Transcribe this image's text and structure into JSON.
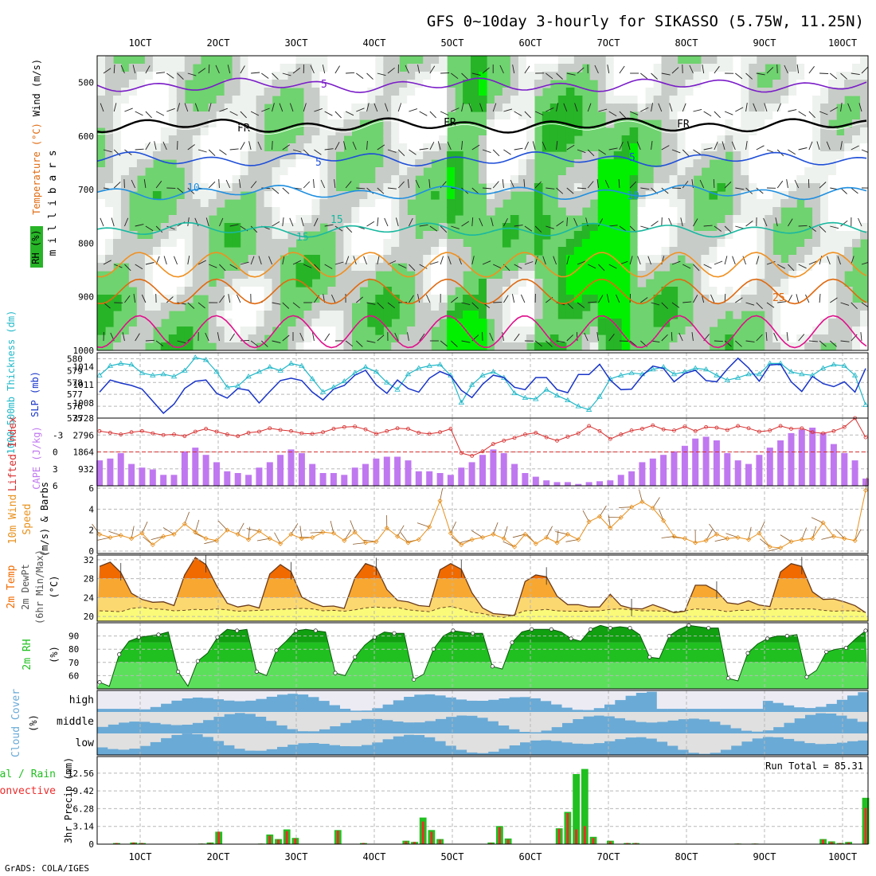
{
  "title": "GFS 0~10day 3-hourly for SIKASSO (5.75W, 11.25N)",
  "credit": "GrADS: COLA/IGES",
  "colors": {
    "rh_dark": "#27b427",
    "rh_mid": "#6fd36f",
    "rh_bright": "#00f000",
    "rh_gray": "#c8ccc8",
    "rh_light": "#eef2ee",
    "rh_white": "#ffffff",
    "temp_purple": "#7a1cc8",
    "temp_fr": "#000000",
    "temp_blue": "#1f4fd8",
    "temp_sky": "#1f8fe0",
    "temp_teal": "#19b8a0",
    "temp_orange": "#f09020",
    "temp_dkorange": "#e06a10",
    "temp_magenta": "#e0108c",
    "thickness": "#20b8c8",
    "slp": "#1834c8",
    "lifted": "#d83030",
    "cape": "#c078f0",
    "wind10": "#e8901c",
    "barb10": "#8a5a2a",
    "temp2m_hot": "#f06a00",
    "temp2m_warm": "#f8a830",
    "temp2m_mild": "#fcd870",
    "dew_fill": "#fafa78",
    "rh2m_dark": "#10a010",
    "rh2m_mid": "#20c020",
    "rh2m_light": "#5ce05c",
    "cloud_blue": "#6aaad6",
    "cloud_gray": "#e0e0e0",
    "cloud_pale": "#ecebf4",
    "rain_total": "#20c020",
    "rain_conv": "#ee2a2a"
  },
  "chart_data": [
    {
      "type": "heatmap",
      "name": "upper",
      "ylabel": "m i l l i b a r s",
      "legend_labels": [
        "Wind (m/s)",
        "Temperature (°C)",
        "RH (%)"
      ],
      "y_ticks": [
        "500",
        "600",
        "700",
        "800",
        "900",
        "1000"
      ],
      "ylim": [
        450,
        1000
      ],
      "x_ticks_top": [
        "1OCT",
        "2OCT",
        "3OCT",
        "4OCT",
        "5OCT",
        "6OCT",
        "7OCT",
        "8OCT",
        "9OCT",
        "10OCT"
      ],
      "contour_labels": [
        "5",
        "FR",
        "FR",
        "FR",
        "5",
        "5",
        "10",
        "10",
        "15",
        "15",
        "25"
      ],
      "isotherms": [
        {
          "name": "-5",
          "pressure": 505
        },
        {
          "name": "0",
          "pressure": 580
        },
        {
          "name": "5",
          "pressure": 643
        },
        {
          "name": "10",
          "pressure": 705
        },
        {
          "name": "15",
          "pressure": 775
        },
        {
          "name": "20",
          "pressure": 840
        },
        {
          "name": "25",
          "pressure": 890
        },
        {
          "name": "30",
          "pressure": 965
        }
      ],
      "wind_speed_max": 12
    },
    {
      "type": "line",
      "name": "thickness_slp",
      "ylabel_left": "1000-500mb Thickness (dm)",
      "ylabel_right": "SLP (mb)",
      "y_left_ticks": [
        "580",
        "579",
        "578",
        "577",
        "576",
        "575"
      ],
      "y_right_ticks": [
        "1014",
        "1011",
        "1008"
      ],
      "ylim_left": [
        575,
        580.5
      ],
      "ylim_right": [
        1005.5,
        1016.3
      ],
      "series": [
        {
          "name": "thickness",
          "values": [
            578.6,
            579.4,
            579.6,
            579.5,
            578.8,
            578.6,
            578.7,
            578.5,
            579.0,
            580.1,
            579.9,
            578.9,
            577.6,
            577.7,
            578.5,
            578.9,
            579.3,
            579.0,
            579.6,
            579.4,
            578.3,
            577.2,
            577.6,
            578.1,
            578.8,
            579.3,
            578.9,
            578.0,
            577.4,
            578.7,
            579.2,
            579.4,
            579.5,
            578.6,
            576.3,
            577.8,
            578.6,
            578.9,
            578.4,
            577.1,
            576.7,
            576.6,
            577.4,
            576.9,
            576.5,
            576.0,
            575.7,
            576.8,
            578.3,
            578.6,
            578.8,
            578.7,
            579.1,
            579.3,
            578.7,
            578.9,
            579.2,
            579.1,
            578.6,
            578.2,
            578.4,
            578.7,
            578.7,
            579.6,
            579.6,
            578.9,
            578.7,
            578.6,
            579.2,
            579.5,
            579.4,
            578.6,
            576.1
          ]
        },
        {
          "name": "slp",
          "values": [
            1009.8,
            1011.8,
            1011.3,
            1010.9,
            1010.3,
            1008.3,
            1006.3,
            1007.8,
            1010.4,
            1011.6,
            1011.8,
            1009.6,
            1008.8,
            1010.4,
            1010.1,
            1008.0,
            1009.9,
            1011.7,
            1012.1,
            1011.7,
            1009.8,
            1008.5,
            1010.3,
            1010.9,
            1012.6,
            1013.4,
            1011.0,
            1009.6,
            1011.8,
            1010.4,
            1009.8,
            1012.1,
            1013.2,
            1012.5,
            1010.1,
            1008.9,
            1011.1,
            1012.6,
            1012.2,
            1010.6,
            1010.2,
            1012.2,
            1012.2,
            1010.2,
            1009.7,
            1012.7,
            1012.7,
            1014.4,
            1011.8,
            1010.2,
            1010.3,
            1012.5,
            1014.1,
            1013.7,
            1011.5,
            1012.9,
            1013.4,
            1011.7,
            1011.5,
            1013.6,
            1015.4,
            1013.8,
            1011.6,
            1014.3,
            1014.4,
            1011.5,
            1009.9,
            1012.4,
            1011.2,
            1010.7,
            1011.5,
            1009.8,
            1013.7
          ]
        }
      ]
    },
    {
      "type": "bar",
      "name": "lifted_cape",
      "ylabel_left": "Lifted Index",
      "ylabel_right": "CAPE (J/kg)",
      "y_left_ticks": [
        "-3",
        "0",
        "3",
        "6"
      ],
      "y_right_ticks": [
        "3728",
        "2796",
        "1864",
        "932"
      ],
      "ylim_left": [
        -6,
        6
      ],
      "ylim_right": [
        0,
        3728
      ],
      "series": [
        {
          "name": "lifted_index",
          "values": [
            -3.7,
            -3.4,
            -3.1,
            -3.5,
            -3.7,
            -3.3,
            -3.0,
            -3.1,
            -2.8,
            -3.6,
            -4.1,
            -3.6,
            -3.1,
            -2.8,
            -3.4,
            -3.6,
            -4.2,
            -3.9,
            -3.7,
            -3.3,
            -3.2,
            -3.5,
            -4.1,
            -4.4,
            -4.5,
            -4.0,
            -3.2,
            -3.7,
            -4.2,
            -4.1,
            -3.4,
            -3.2,
            -3.5,
            -4.1,
            0.2,
            0.7,
            -0.1,
            -1.4,
            -2.0,
            -2.5,
            -3.1,
            -3.4,
            -2.6,
            -2.0,
            -2.7,
            -3.3,
            -4.6,
            -3.7,
            -2.3,
            -3.1,
            -3.8,
            -4.1,
            -4.7,
            -4.0,
            -3.8,
            -4.5,
            -3.7,
            -4.4,
            -4.3,
            -3.9,
            -4.6,
            -4.2,
            -3.6,
            -3.8,
            -4.6,
            -4.1,
            -4.2,
            -3.5,
            -3.3,
            -3.7,
            -4.4,
            -6.0,
            -2.6
          ]
        },
        {
          "name": "cape",
          "values": [
            1400,
            1500,
            1800,
            1200,
            1000,
            900,
            600,
            600,
            1900,
            2100,
            1700,
            1300,
            800,
            700,
            600,
            1000,
            1300,
            1700,
            2000,
            1800,
            1200,
            700,
            700,
            600,
            1000,
            1200,
            1500,
            1600,
            1600,
            1400,
            800,
            800,
            700,
            600,
            1000,
            1300,
            1700,
            2000,
            1800,
            1200,
            700,
            500,
            300,
            200,
            200,
            100,
            200,
            250,
            300,
            600,
            800,
            1300,
            1500,
            1700,
            1900,
            2200,
            2600,
            2700,
            2500,
            1800,
            1400,
            1200,
            1700,
            2100,
            2500,
            2900,
            3100,
            3200,
            2900,
            2300,
            1800,
            1400,
            400
          ]
        }
      ]
    },
    {
      "type": "line",
      "name": "wind10m",
      "ylabel": "10m Wind Speed (m/s) & Barbs",
      "y_ticks": [
        "6",
        "4",
        "2",
        "0"
      ],
      "ylim": [
        0,
        6
      ],
      "series": [
        {
          "name": "speed",
          "values": [
            1.6,
            1.3,
            1.5,
            1.2,
            1.7,
            0.6,
            1.4,
            1.6,
            2.6,
            1.8,
            1.2,
            1.0,
            2.0,
            1.6,
            1.1,
            1.9,
            1.2,
            0.7,
            1.6,
            1.2,
            1.3,
            1.8,
            1.7,
            1.0,
            1.8,
            0.8,
            0.9,
            2.2,
            1.4,
            0.8,
            1.1,
            2.3,
            4.8,
            1.7,
            0.6,
            1.1,
            1.3,
            1.6,
            1.2,
            0.4,
            1.6,
            0.7,
            1.3,
            0.8,
            1.6,
            1.1,
            2.8,
            3.3,
            2.2,
            3.2,
            4.2,
            4.7,
            4.1,
            2.9,
            1.4,
            1.2,
            0.8,
            1.0,
            1.6,
            1.2,
            1.3,
            1.1,
            1.7,
            0.4,
            0.3,
            0.9,
            1.1,
            1.2,
            2.7,
            1.4,
            1.2,
            1.0,
            5.8
          ]
        }
      ]
    },
    {
      "type": "area",
      "name": "temp2m",
      "ylabel": "2m Temp 2m DewPt (6hr Min/Max) (°C)",
      "y_ticks": [
        "32",
        "28",
        "24",
        "20"
      ],
      "ylim": [
        19,
        33
      ],
      "series": [
        {
          "name": "temp",
          "values": [
            30.6,
            31.5,
            29.3,
            24.9,
            23.6,
            23.0,
            23.1,
            22.3,
            28.8,
            32.5,
            31.0,
            26.5,
            22.8,
            22.0,
            22.4,
            21.8,
            29.0,
            31.0,
            29.5,
            24.1,
            22.9,
            22.1,
            22.2,
            21.7,
            28.2,
            31.2,
            30.4,
            25.7,
            23.4,
            23.1,
            22.3,
            22.1,
            29.9,
            31.2,
            30.0,
            25.0,
            21.8,
            20.6,
            20.4,
            20.2,
            27.4,
            28.8,
            28.4,
            24.3,
            22.5,
            22.5,
            22.0,
            22.0,
            24.7,
            22.3,
            21.7,
            21.6,
            22.5,
            21.7,
            20.8,
            21.1,
            26.6,
            26.6,
            25.4,
            22.9,
            22.6,
            23.3,
            22.4,
            22.1,
            29.4,
            31.2,
            30.6,
            25.2,
            23.6,
            23.7,
            23.1,
            22.3,
            20.8
          ]
        },
        {
          "name": "dewpt",
          "values": [
            21.2,
            21.1,
            21.0,
            21.7,
            21.9,
            21.6,
            21.5,
            21.2,
            21.3,
            21.5,
            21.4,
            21.6,
            21.4,
            21.1,
            21.2,
            21.3,
            21.4,
            21.5,
            21.6,
            21.7,
            21.6,
            21.2,
            21.3,
            21.1,
            21.4,
            21.8,
            22.0,
            21.8,
            21.9,
            21.4,
            21.2,
            21.0,
            21.8,
            22.1,
            21.6,
            20.9,
            20.6,
            20.1,
            19.8,
            20.4,
            21.2,
            21.3,
            21.5,
            21.2,
            21.1,
            21.1,
            21.1,
            21.2,
            21.5,
            21.6,
            21.4,
            21.2,
            21.2,
            21.1,
            21.0,
            21.2,
            21.6,
            21.5,
            21.4,
            21.0,
            21.3,
            21.3,
            21.5,
            21.5,
            21.6,
            21.6,
            21.6,
            21.6,
            21.3,
            21.1,
            21.2,
            21.2,
            20.9
          ]
        }
      ]
    },
    {
      "type": "area",
      "name": "rh2m",
      "ylabel": "2m RH (%)",
      "y_ticks": [
        "90",
        "80",
        "70",
        "60"
      ],
      "ylim": [
        50,
        100
      ],
      "series": [
        {
          "name": "rh",
          "values": [
            55.0,
            52.0,
            76.0,
            86.0,
            89.0,
            90.0,
            91.0,
            93.0,
            63.0,
            52.0,
            71.0,
            77.0,
            89.0,
            95.0,
            94.0,
            95.0,
            63.0,
            60.0,
            79.0,
            86.0,
            94.0,
            95.0,
            94.0,
            93.0,
            62.0,
            60.0,
            74.0,
            83.0,
            89.0,
            93.0,
            92.0,
            92.0,
            57.0,
            61.0,
            80.0,
            90.0,
            94.0,
            93.0,
            92.0,
            92.0,
            67.0,
            65.0,
            85.0,
            93.0,
            95.0,
            95.0,
            95.0,
            93.0,
            88.0,
            86.0,
            95.0,
            98.0,
            96.0,
            97.0,
            96.0,
            91.0,
            74.0,
            73.0,
            90.0,
            95.0,
            98.0,
            97.0,
            96.0,
            96.0,
            58.0,
            56.0,
            77.0,
            84.0,
            88.0,
            90.0,
            90.0,
            91.0,
            59.0,
            64.0,
            78.0,
            80.0,
            81.0,
            88.0,
            94.0
          ]
        }
      ]
    },
    {
      "type": "heatmap",
      "name": "cloud_cover",
      "ylabel": "Cloud Cover (%)",
      "row_labels": [
        "high",
        "middle",
        "low"
      ]
    },
    {
      "type": "bar",
      "name": "precip",
      "ylabel": "3hr Precip (mm)",
      "legend": [
        "Total / Rain",
        "Convective"
      ],
      "annotation": "Run Total = 85.31",
      "y_ticks": [
        "12.56",
        "9.42",
        "6.28",
        "3.14",
        "0"
      ],
      "ylim": [
        0,
        15.5
      ],
      "x_ticks_bottom": [
        "1OCT",
        "2OCT",
        "3OCT",
        "4OCT",
        "5OCT",
        "6OCT",
        "7OCT",
        "8OCT",
        "9OCT",
        "10OCT"
      ],
      "series": [
        {
          "name": "total",
          "values": [
            0.0,
            0.0,
            0.2,
            0.0,
            0.3,
            0.2,
            0.0,
            0.0,
            0.0,
            0.0,
            0.0,
            0.0,
            0.1,
            0.3,
            2.2,
            0.0,
            0.0,
            0.0,
            0.0,
            0.1,
            1.7,
            0.9,
            2.6,
            1.1,
            0.0,
            0.0,
            0.0,
            0.0,
            2.5,
            0.0,
            0.0,
            0.2,
            0.0,
            0.0,
            0.0,
            0.0,
            0.6,
            0.4,
            4.7,
            2.5,
            0.9,
            0.0,
            0.0,
            0.0,
            0.0,
            0.0,
            0.3,
            3.2,
            1.0,
            0.0,
            0.0,
            0.0,
            0.0,
            0.0,
            2.8,
            5.7,
            12.4,
            13.3,
            1.3,
            0.0,
            0.6,
            0.0,
            0.2,
            0.2,
            0.0,
            0.0,
            0.0,
            0.0,
            0.0,
            0.0,
            0.0,
            0.0,
            0.0,
            0.0,
            0.0,
            0.1,
            0.0,
            0.1,
            0.0,
            0.0,
            0.0,
            0.0,
            0.0,
            0.0,
            0.0,
            0.9,
            0.5,
            0.2,
            0.4,
            0.0,
            8.2
          ]
        },
        {
          "name": "convective",
          "values": [
            0.0,
            0.0,
            0.2,
            0.0,
            0.3,
            0.2,
            0.0,
            0.0,
            0.0,
            0.0,
            0.0,
            0.0,
            0.1,
            0.2,
            2.2,
            0.0,
            0.0,
            0.0,
            0.0,
            0.1,
            1.5,
            0.8,
            2.3,
            1.0,
            0.0,
            0.0,
            0.0,
            0.0,
            2.4,
            0.0,
            0.0,
            0.2,
            0.0,
            0.0,
            0.0,
            0.0,
            0.5,
            0.4,
            4.0,
            2.2,
            0.8,
            0.0,
            0.0,
            0.0,
            0.0,
            0.0,
            0.2,
            3.0,
            0.8,
            0.0,
            0.0,
            0.0,
            0.0,
            0.0,
            2.7,
            5.5,
            2.6,
            3.2,
            1.1,
            0.0,
            0.5,
            0.0,
            0.2,
            0.2,
            0.0,
            0.0,
            0.0,
            0.0,
            0.0,
            0.0,
            0.0,
            0.0,
            0.0,
            0.0,
            0.0,
            0.1,
            0.0,
            0.1,
            0.0,
            0.0,
            0.0,
            0.0,
            0.0,
            0.0,
            0.0,
            0.8,
            0.4,
            0.2,
            0.3,
            0.0,
            6.4
          ]
        }
      ]
    }
  ]
}
